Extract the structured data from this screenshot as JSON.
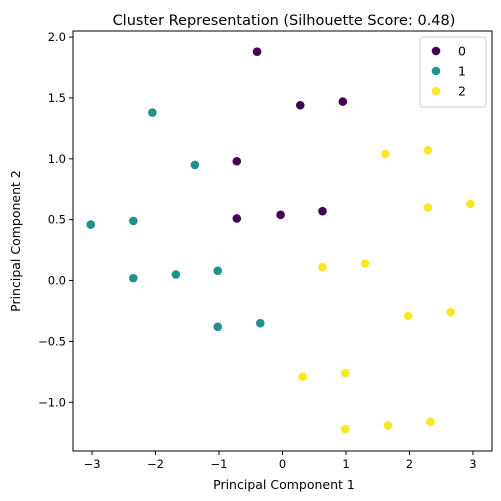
{
  "chart_data": {
    "type": "scatter",
    "title": "Cluster Representation (Silhouette Score: 0.48)",
    "xlabel": "Principal Component 1",
    "ylabel": "Principal Component 2",
    "xlim": [
      -3.3,
      3.3
    ],
    "ylim": [
      -1.4,
      2.05
    ],
    "xticks": [
      -3,
      -2,
      -1,
      0,
      1,
      2,
      3
    ],
    "yticks": [
      -1.0,
      -0.5,
      0.0,
      0.5,
      1.0,
      1.5,
      2.0
    ],
    "grid": false,
    "legend_position": "top-right",
    "series": [
      {
        "name": "0",
        "color": "#440154",
        "points": [
          [
            -0.4,
            1.88
          ],
          [
            0.28,
            1.44
          ],
          [
            0.95,
            1.47
          ],
          [
            -0.72,
            0.98
          ],
          [
            -0.72,
            0.51
          ],
          [
            -0.03,
            0.54
          ],
          [
            0.63,
            0.57
          ]
        ]
      },
      {
        "name": "1",
        "color": "#21918c",
        "points": [
          [
            -2.05,
            1.38
          ],
          [
            -1.38,
            0.95
          ],
          [
            -3.02,
            0.46
          ],
          [
            -2.35,
            0.49
          ],
          [
            -2.35,
            0.02
          ],
          [
            -1.68,
            0.05
          ],
          [
            -1.02,
            0.08
          ],
          [
            -1.02,
            -0.38
          ],
          [
            -0.35,
            -0.35
          ]
        ]
      },
      {
        "name": "2",
        "color": "#fde725",
        "points": [
          [
            1.62,
            1.04
          ],
          [
            2.29,
            1.07
          ],
          [
            2.29,
            0.6
          ],
          [
            2.96,
            0.63
          ],
          [
            0.63,
            0.11
          ],
          [
            1.3,
            0.14
          ],
          [
            1.98,
            -0.29
          ],
          [
            2.65,
            -0.26
          ],
          [
            0.32,
            -0.79
          ],
          [
            0.99,
            -0.76
          ],
          [
            0.99,
            -1.22
          ],
          [
            1.66,
            -1.19
          ],
          [
            2.33,
            -1.16
          ]
        ]
      }
    ]
  }
}
